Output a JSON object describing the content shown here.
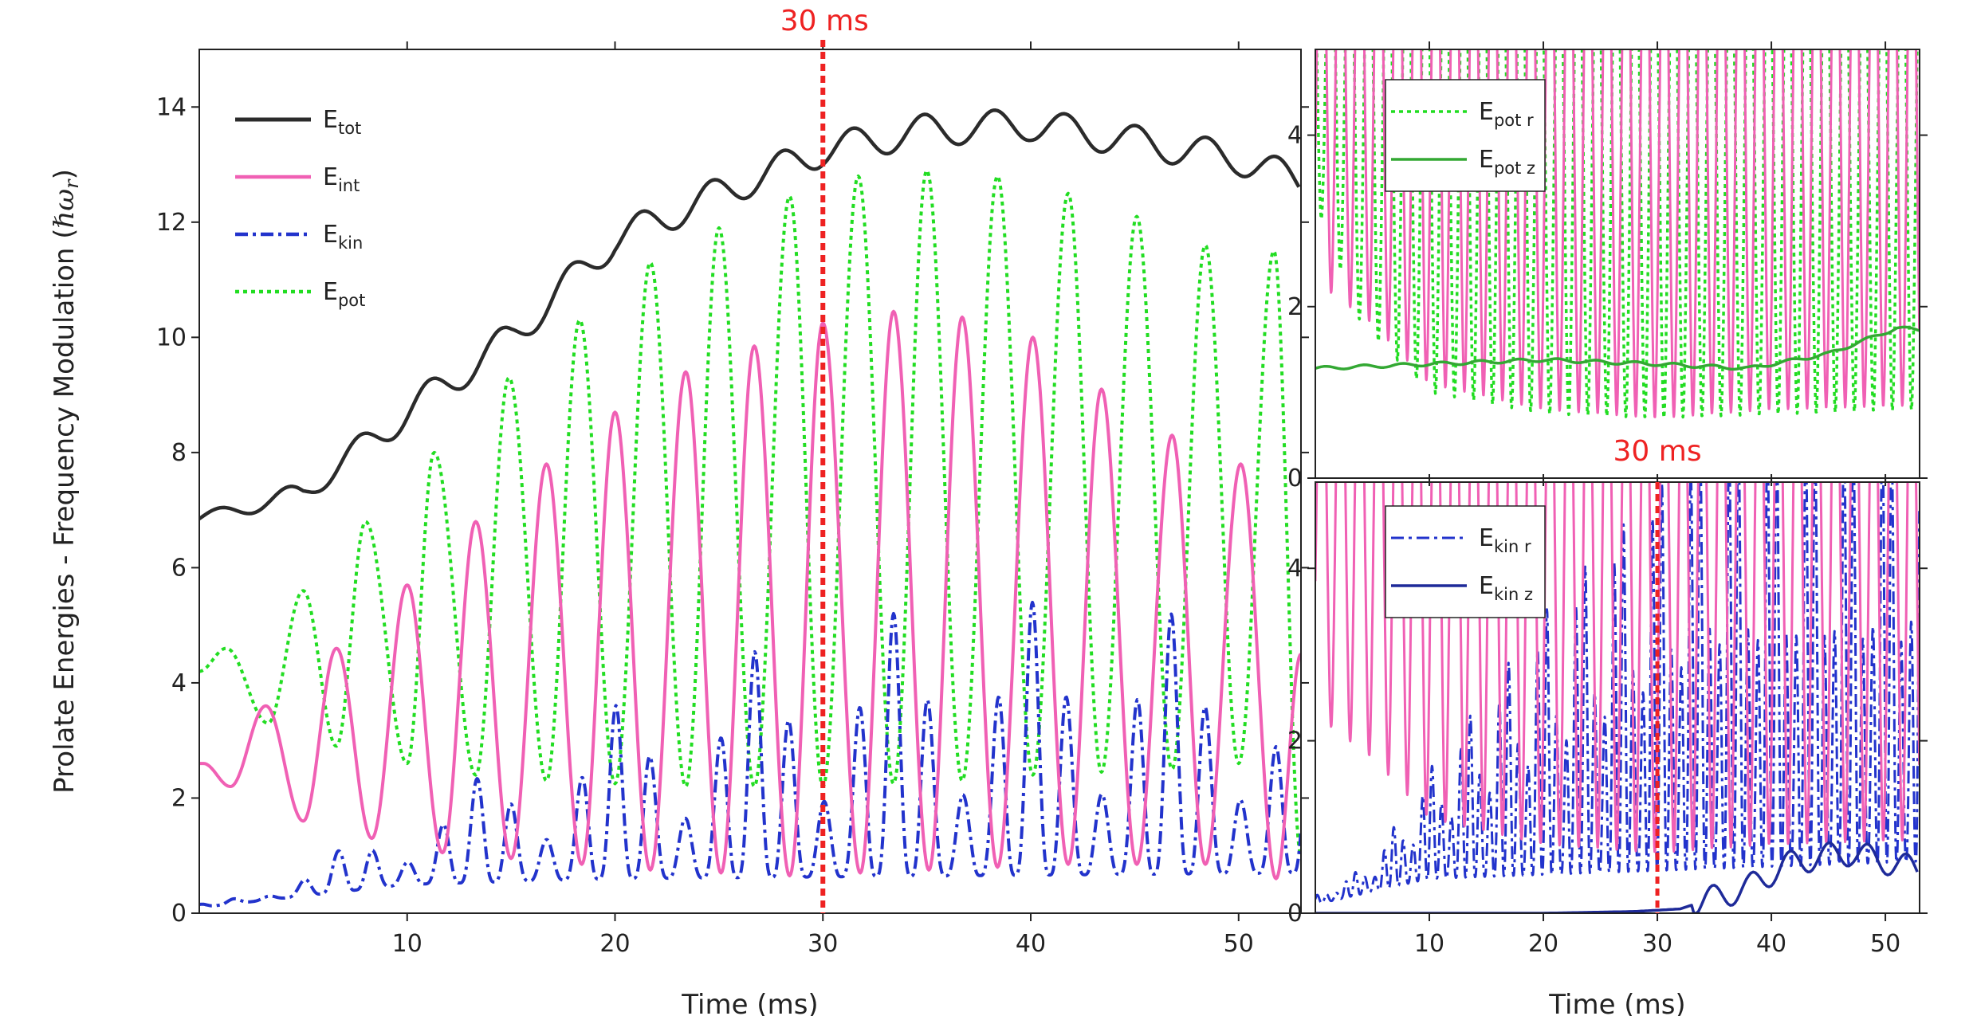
{
  "colors": {
    "tot": "#2b2b2b",
    "int": "#f060b4",
    "kin": "#2233cc",
    "pot": "#22dd22",
    "pot_z": "#33a833",
    "kin_z": "#1e2a99",
    "marker": "#ee2222"
  },
  "chart_data": [
    {
      "id": "main",
      "type": "line",
      "ylabel": "Prolate Energies - Frequency Modulation (",
      "ylabel_math": "ℏω",
      "ylabel_math_sub": "r",
      "ylabel_close": ")",
      "xlabel": "Time (ms)",
      "xlim": [
        0,
        53
      ],
      "ylim": [
        0,
        15
      ],
      "xticks": [
        "10",
        "20",
        "30",
        "40",
        "50"
      ],
      "yticks": [
        "0",
        "2",
        "4",
        "6",
        "8",
        "10",
        "12",
        "14"
      ],
      "marker": {
        "x": 30,
        "label": "30 ms"
      },
      "legend_position": "top-left",
      "series": [
        {
          "key": "tot",
          "name": "E",
          "sub": "tot",
          "style": "solid",
          "model": {
            "base": [
              [
                0,
                6.85
              ],
              [
                5,
                7.3
              ],
              [
                10,
                8.7
              ],
              [
                15,
                10.0
              ],
              [
                20,
                11.7
              ],
              [
                25,
                12.5
              ],
              [
                30,
                13.25
              ],
              [
                35,
                13.6
              ],
              [
                40,
                13.7
              ],
              [
                45,
                13.4
              ],
              [
                50,
                13.1
              ],
              [
                53,
                12.7
              ]
            ],
            "osc": 0.28,
            "period": 3.4
          }
        },
        {
          "key": "int",
          "name": "E",
          "sub": "int",
          "style": "solid",
          "peaks": [
            [
              0.2,
              2.6
            ],
            [
              3.2,
              3.6
            ],
            [
              6.6,
              4.6
            ],
            [
              10.0,
              5.7
            ],
            [
              13.3,
              6.8
            ],
            [
              16.7,
              7.8
            ],
            [
              20.0,
              8.7
            ],
            [
              23.4,
              9.4
            ],
            [
              26.7,
              9.85
            ],
            [
              30.0,
              10.25
            ],
            [
              33.4,
              10.45
            ],
            [
              36.7,
              10.35
            ],
            [
              40.1,
              10.0
            ],
            [
              43.4,
              9.1
            ],
            [
              46.8,
              8.3
            ],
            [
              50.1,
              7.8
            ],
            [
              53.0,
              4.5
            ]
          ],
          "troughs": [
            [
              1.5,
              2.2
            ],
            [
              5.0,
              1.6
            ],
            [
              8.3,
              1.3
            ],
            [
              11.7,
              1.05
            ],
            [
              15.0,
              0.95
            ],
            [
              18.4,
              0.85
            ],
            [
              21.7,
              0.75
            ],
            [
              25.1,
              0.7
            ],
            [
              28.4,
              0.65
            ],
            [
              31.8,
              0.7
            ],
            [
              35.1,
              0.75
            ],
            [
              38.4,
              0.8
            ],
            [
              41.8,
              0.85
            ],
            [
              45.1,
              0.85
            ],
            [
              48.4,
              0.85
            ],
            [
              51.8,
              0.6
            ]
          ]
        },
        {
          "key": "kin",
          "name": "E",
          "sub": "kin",
          "style": "dashdot",
          "model": {
            "env": [
              [
                0,
                0.15
              ],
              [
                4,
                0.5
              ],
              [
                10,
                1.8
              ],
              [
                15,
                2.6
              ],
              [
                20,
                3.6
              ],
              [
                25,
                4.3
              ],
              [
                30,
                5.0
              ],
              [
                35,
                5.3
              ],
              [
                40,
                5.4
              ],
              [
                45,
                5.3
              ],
              [
                50,
                5.0
              ],
              [
                53,
                3.4
              ]
            ],
            "floor": [
              [
                0,
                0.1
              ],
              [
                10,
                0.5
              ],
              [
                20,
                0.6
              ],
              [
                53,
                0.7
              ]
            ],
            "period": 1.67
          }
        },
        {
          "key": "pot",
          "name": "E",
          "sub": "pot",
          "style": "dotted",
          "peaks": [
            [
              1.3,
              4.6
            ],
            [
              5.0,
              5.6
            ],
            [
              8.0,
              6.8
            ],
            [
              11.3,
              8.0
            ],
            [
              14.9,
              9.3
            ],
            [
              18.3,
              10.3
            ],
            [
              21.7,
              11.3
            ],
            [
              25.0,
              11.9
            ],
            [
              28.4,
              12.45
            ],
            [
              31.7,
              12.8
            ],
            [
              35.0,
              12.9
            ],
            [
              38.4,
              12.8
            ],
            [
              41.8,
              12.5
            ],
            [
              45.1,
              12.1
            ],
            [
              48.4,
              11.6
            ],
            [
              51.7,
              11.5
            ]
          ],
          "troughs": [
            [
              0,
              4.2
            ],
            [
              3.3,
              3.3
            ],
            [
              6.6,
              2.9
            ],
            [
              10.0,
              2.6
            ],
            [
              13.3,
              2.4
            ],
            [
              16.7,
              2.3
            ],
            [
              20.0,
              2.25
            ],
            [
              23.4,
              2.2
            ],
            [
              26.7,
              2.2
            ],
            [
              30.0,
              2.2
            ],
            [
              33.4,
              2.25
            ],
            [
              36.7,
              2.3
            ],
            [
              40.1,
              2.4
            ],
            [
              43.4,
              2.45
            ],
            [
              46.8,
              2.5
            ],
            [
              50.0,
              2.6
            ],
            [
              53.0,
              1.0
            ]
          ]
        }
      ]
    },
    {
      "id": "top_right",
      "type": "line",
      "xlim": [
        0,
        53
      ],
      "ylim": [
        0,
        5
      ],
      "yticks": [
        "0",
        "2",
        "4"
      ],
      "legend_position": "top-left",
      "series": [
        {
          "key": "pot_r",
          "name": "E",
          "sub": "pot r",
          "style": "dotted"
        },
        {
          "key": "pot_z",
          "name": "E",
          "sub": "pot z",
          "style": "solid",
          "points": [
            [
              0,
              1.28
            ],
            [
              10,
              1.33
            ],
            [
              20,
              1.38
            ],
            [
              30,
              1.33
            ],
            [
              38,
              1.28
            ],
            [
              45,
              1.45
            ],
            [
              51,
              1.75
            ],
            [
              53,
              1.73
            ]
          ]
        }
      ]
    },
    {
      "id": "bottom_right",
      "type": "line",
      "xlabel": "Time (ms)",
      "xlim": [
        0,
        53
      ],
      "ylim": [
        0,
        5
      ],
      "xticks": [
        "10",
        "20",
        "30",
        "40",
        "50"
      ],
      "yticks": [
        "0",
        "2",
        "4"
      ],
      "marker": {
        "x": 30,
        "label": "30 ms"
      },
      "legend_position": "top-left",
      "series": [
        {
          "key": "kin_r",
          "name": "E",
          "sub": "kin r",
          "style": "dashdot"
        },
        {
          "key": "kin_z",
          "name": "E",
          "sub": "kin z",
          "style": "solid",
          "points": [
            [
              0,
              0.0
            ],
            [
              20,
              0.0
            ],
            [
              28,
              0.02
            ],
            [
              32,
              0.05
            ],
            [
              35,
              0.18
            ],
            [
              38,
              0.3
            ],
            [
              41,
              0.55
            ],
            [
              44,
              0.65
            ],
            [
              47,
              0.7
            ],
            [
              50,
              0.6
            ],
            [
              53,
              0.5
            ]
          ]
        }
      ]
    }
  ]
}
